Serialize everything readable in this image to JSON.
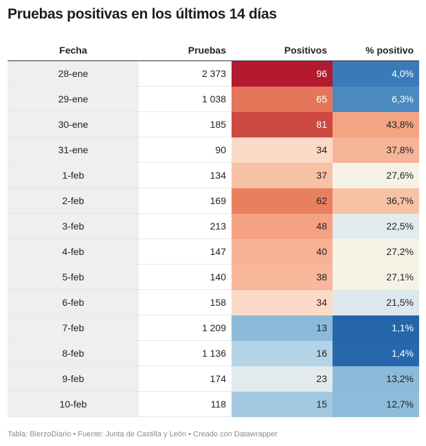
{
  "title": "Pruebas positivas en los últimos 14 días",
  "footer": "Tabla: BierzoDiario • Fuente: Junta de Castilla y León • Creado con Datawrapper",
  "chart_data": {
    "type": "table",
    "columns": [
      "Fecha",
      "Pruebas",
      "Positivos",
      "% positivo"
    ],
    "rows": [
      {
        "fecha": "28-ene",
        "pruebas": "2 373",
        "positivos": "96",
        "pct": "4,0%",
        "pos_color": "#b3192f",
        "pct_color": "#3b7ab8"
      },
      {
        "fecha": "29-ene",
        "pruebas": "1 038",
        "positivos": "65",
        "pct": "6,3%",
        "pos_color": "#e4775a",
        "pct_color": "#4b89c0"
      },
      {
        "fecha": "30-ene",
        "pruebas": "185",
        "positivos": "81",
        "pct": "43,8%",
        "pos_color": "#cc4a42",
        "pct_color": "#f3a583"
      },
      {
        "fecha": "31-ene",
        "pruebas": "90",
        "positivos": "34",
        "pct": "37,8%",
        "pos_color": "#fbdac7",
        "pct_color": "#f6b598"
      },
      {
        "fecha": "1-feb",
        "pruebas": "134",
        "positivos": "37",
        "pct": "27,6%",
        "pos_color": "#f7c1a6",
        "pct_color": "#f6f3e6"
      },
      {
        "fecha": "2-feb",
        "pruebas": "169",
        "positivos": "62",
        "pct": "36,7%",
        "pos_color": "#e8805f",
        "pct_color": "#f8c2a7"
      },
      {
        "fecha": "3-feb",
        "pruebas": "213",
        "positivos": "48",
        "pct": "22,5%",
        "pos_color": "#f5a282",
        "pct_color": "#e2ebee"
      },
      {
        "fecha": "4-feb",
        "pruebas": "147",
        "positivos": "40",
        "pct": "27,2%",
        "pos_color": "#f7b296",
        "pct_color": "#f6f3e6"
      },
      {
        "fecha": "5-feb",
        "pruebas": "140",
        "positivos": "38",
        "pct": "27,1%",
        "pos_color": "#f7b89c",
        "pct_color": "#f6f3e6"
      },
      {
        "fecha": "6-feb",
        "pruebas": "158",
        "positivos": "34",
        "pct": "21,5%",
        "pos_color": "#fbdac7",
        "pct_color": "#dde8ee"
      },
      {
        "fecha": "7-feb",
        "pruebas": "1 209",
        "positivos": "13",
        "pct": "1,1%",
        "pos_color": "#8cbad9",
        "pct_color": "#2566ab"
      },
      {
        "fecha": "8-feb",
        "pruebas": "1 136",
        "positivos": "16",
        "pct": "1,4%",
        "pos_color": "#b3d3e7",
        "pct_color": "#2768ad"
      },
      {
        "fecha": "9-feb",
        "pruebas": "174",
        "positivos": "23",
        "pct": "13,2%",
        "pos_color": "#e3eaee",
        "pct_color": "#8cbad9"
      },
      {
        "fecha": "10-feb",
        "pruebas": "118",
        "positivos": "15",
        "pct": "12,7%",
        "pos_color": "#a3c9e2",
        "pct_color": "#8ebbd9"
      }
    ]
  }
}
